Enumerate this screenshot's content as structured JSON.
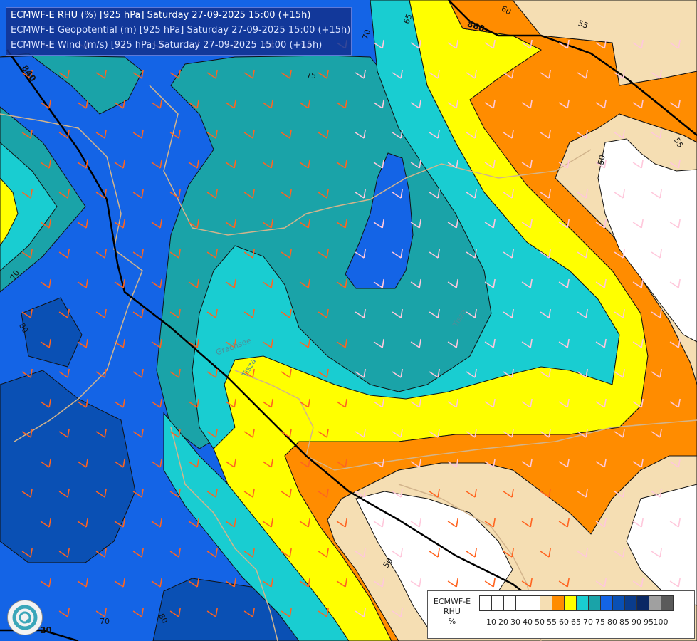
{
  "header": {
    "line1": "ECMWF-E RHU (%) [925 hPa] Saturday 27-09-2025 15:00 (+15h)",
    "line2": "ECMWF-E Geopotential (m) [925 hPa] Saturday 27-09-2025 15:00 (+15h)",
    "line3": "ECMWF-E Wind (m/s) [925 hPa] Saturday 27-09-2025 15:00 (+15h)"
  },
  "legend": {
    "title": [
      "ECMWF-E",
      "RHU",
      "%"
    ],
    "ticks": [
      "10",
      "20",
      "30",
      "40",
      "50",
      "55",
      "60",
      "65",
      "70",
      "75",
      "80",
      "85",
      "90",
      "95",
      "100"
    ],
    "colors": [
      "#ffffff",
      "#ffffff",
      "#ffffff",
      "#ffffff",
      "#ffffff",
      "#f5deb3",
      "#ff8c00",
      "#ffff00",
      "#19cdd1",
      "#1aa3a8",
      "#1464e6",
      "#0a50b4",
      "#0a3c8c",
      "#0a2864",
      "#a0a0a0",
      "#5a5a5a"
    ]
  },
  "map": {
    "geopotential_labels": [
      "840",
      "860",
      "20"
    ],
    "rhu_labels": [
      "75",
      "70",
      "65",
      "60",
      "55",
      "55",
      "50",
      "50",
      "80",
      "70",
      "80",
      "70"
    ],
    "place_names": [
      "Grachsee",
      "Tisza",
      "Tisza"
    ]
  },
  "colors": {
    "rhu_55": "#f5deb3",
    "rhu_60": "#ff8c00",
    "rhu_65": "#ffff00",
    "rhu_70": "#19cdd1",
    "rhu_75": "#1aa3a8",
    "rhu_80": "#1464e6",
    "rhu_85": "#0a50b4",
    "rhu_90": "#0a3c8c",
    "wind_barb_orange": "#ff6420",
    "wind_barb_pink": "#ffc8dc",
    "border_line": "#d2b48c"
  }
}
